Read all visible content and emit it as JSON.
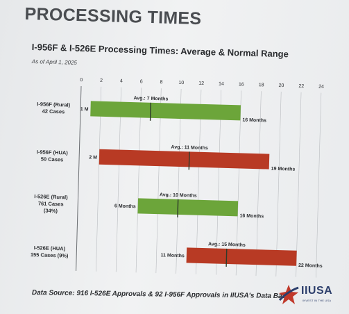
{
  "slide": {
    "heading": "PROCESSING TIMES",
    "source_note": "Data Source: 916 I-526E Approvals & 92 I-956F Approvals in IIUSA's Data Base",
    "logo_text": "IIUSA",
    "logo_subtext": "INVEST IN THE USA",
    "logo_icon": "star-arrow-icon"
  },
  "colors": {
    "green": "#6ca53a",
    "red": "#b83a24",
    "avg_line": "#2e3a2a"
  },
  "chart_data": {
    "type": "bar",
    "title": "I-956F & I-526E Processing Times: Average & Normal Range",
    "subtitle": "As of April 1, 2025",
    "xlim": [
      0,
      24
    ],
    "x_ticks": [
      0,
      2,
      4,
      6,
      8,
      10,
      12,
      14,
      16,
      18,
      20,
      22,
      24
    ],
    "grid": true,
    "categories": [
      {
        "lines": [
          "I-956F (Rural)",
          "42 Cases"
        ],
        "min": 1,
        "max": 16,
        "avg": 7,
        "min_label": "1 M",
        "max_label": "16 Months",
        "avg_label": "Avg.: 7 Months",
        "color": "green"
      },
      {
        "lines": [
          "I-956F (HUA)",
          "50 Cases"
        ],
        "min": 2,
        "max": 19,
        "avg": 11,
        "min_label": "2 M",
        "max_label": "19 Months",
        "avg_label": "Avg.: 11 Months",
        "color": "red"
      },
      {
        "lines": [
          "I-526E (Rural)",
          "761 Cases",
          "(34%)"
        ],
        "min": 6,
        "max": 16,
        "avg": 10,
        "min_label": "6 Months",
        "max_label": "16 Months",
        "avg_label": "Avg.: 10 Months",
        "color": "green"
      },
      {
        "lines": [
          "I-526E (HUA)",
          "155 Cases (9%)"
        ],
        "min": 11,
        "max": 22,
        "avg": 15,
        "min_label": "11 Months",
        "max_label": "22 Months",
        "avg_label": "Avg.: 15 Months",
        "color": "red"
      }
    ]
  }
}
